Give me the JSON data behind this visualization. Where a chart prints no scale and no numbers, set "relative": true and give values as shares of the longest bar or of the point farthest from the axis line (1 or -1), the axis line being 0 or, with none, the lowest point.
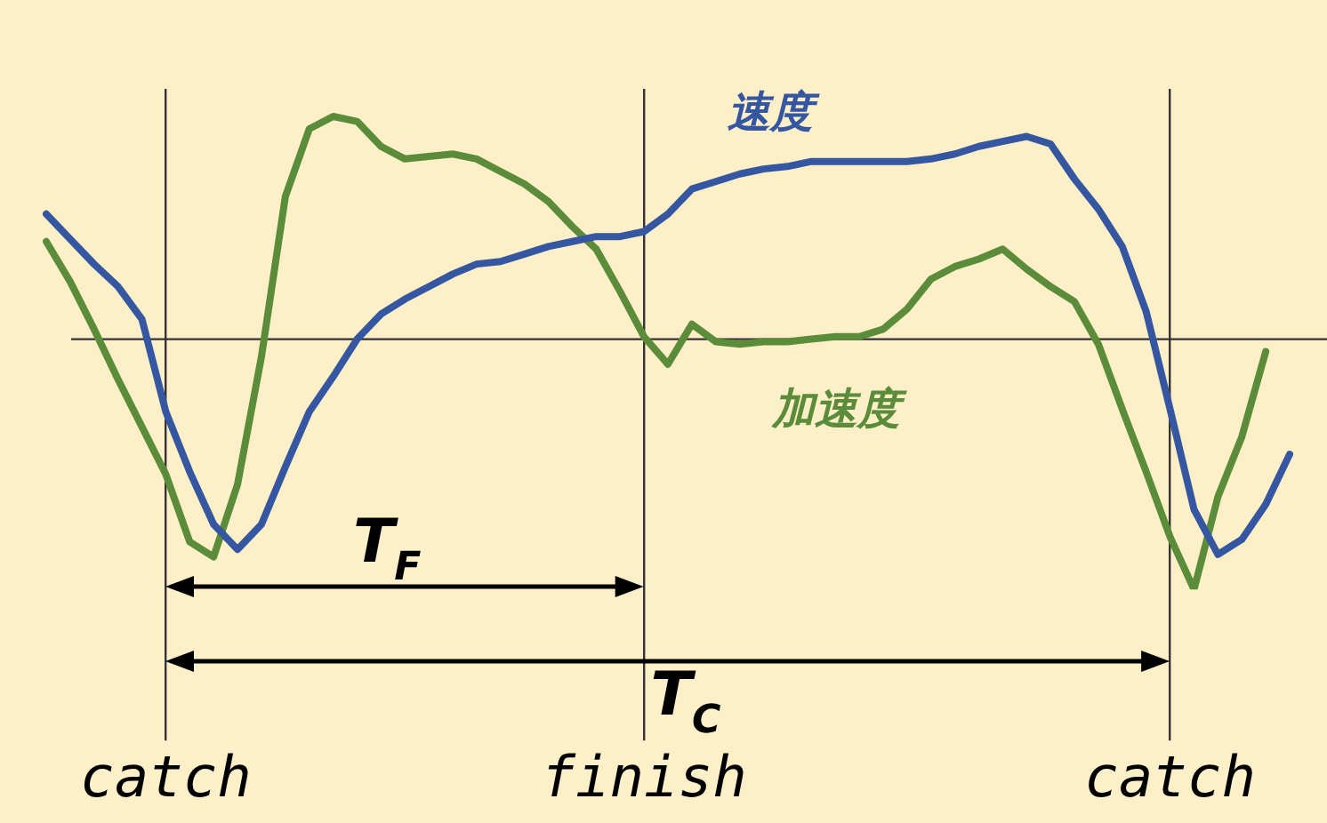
{
  "chart_data": {
    "type": "line",
    "relative": true,
    "tick_labels": "x",
    "grid": "x",
    "legend": false,
    "marker": "none",
    "categories": [
      null,
      null,
      null,
      null,
      null,
      "catch",
      null,
      null,
      null,
      null,
      null,
      null,
      null,
      null,
      null,
      null,
      null,
      null,
      null,
      null,
      null,
      null,
      null,
      null,
      null,
      "finish",
      null,
      null,
      null,
      null,
      null,
      null,
      null,
      null,
      null,
      null,
      null,
      null,
      null,
      null,
      null,
      null,
      null,
      null,
      null,
      null,
      null,
      "catch",
      null,
      null,
      null,
      null,
      null
    ],
    "series": [
      {
        "name": "速度",
        "color": "#3556a0",
        "values": [
          0.5,
          0.4,
          0.3,
          0.21,
          0.08,
          -0.29,
          -0.53,
          -0.74,
          -0.84,
          -0.74,
          -0.51,
          -0.29,
          -0.15,
          0.0,
          0.1,
          0.16,
          0.21,
          0.26,
          0.3,
          0.31,
          0.34,
          0.37,
          0.39,
          0.41,
          0.41,
          0.43,
          0.5,
          0.6,
          0.63,
          0.66,
          0.68,
          0.69,
          0.71,
          0.71,
          0.71,
          0.71,
          0.71,
          0.72,
          0.74,
          0.77,
          0.79,
          0.81,
          0.78,
          0.64,
          0.52,
          0.37,
          0.11,
          -0.28,
          -0.68,
          -0.86,
          -0.8,
          -0.66,
          -0.46
        ]
      },
      {
        "name": "加速度",
        "color": "#5b8c3a",
        "values": [
          0.39,
          0.23,
          0.04,
          -0.16,
          -0.35,
          -0.54,
          -0.81,
          -0.87,
          -0.58,
          -0.07,
          0.57,
          0.84,
          0.89,
          0.87,
          0.77,
          0.72,
          0.73,
          0.74,
          0.72,
          0.67,
          0.62,
          0.55,
          0.45,
          0.36,
          0.19,
          0.01,
          -0.1,
          0.06,
          -0.01,
          -0.02,
          -0.01,
          -0.01,
          0.0,
          0.01,
          0.01,
          0.04,
          0.12,
          0.24,
          0.29,
          0.32,
          0.36,
          0.28,
          0.21,
          0.15,
          -0.02,
          -0.28,
          -0.53,
          -0.79,
          -1.0,
          -0.63,
          -0.39,
          -0.05,
          null
        ]
      }
    ],
    "annotations": [
      "T$_{F}$",
      "T$_{C}$"
    ]
  }
}
